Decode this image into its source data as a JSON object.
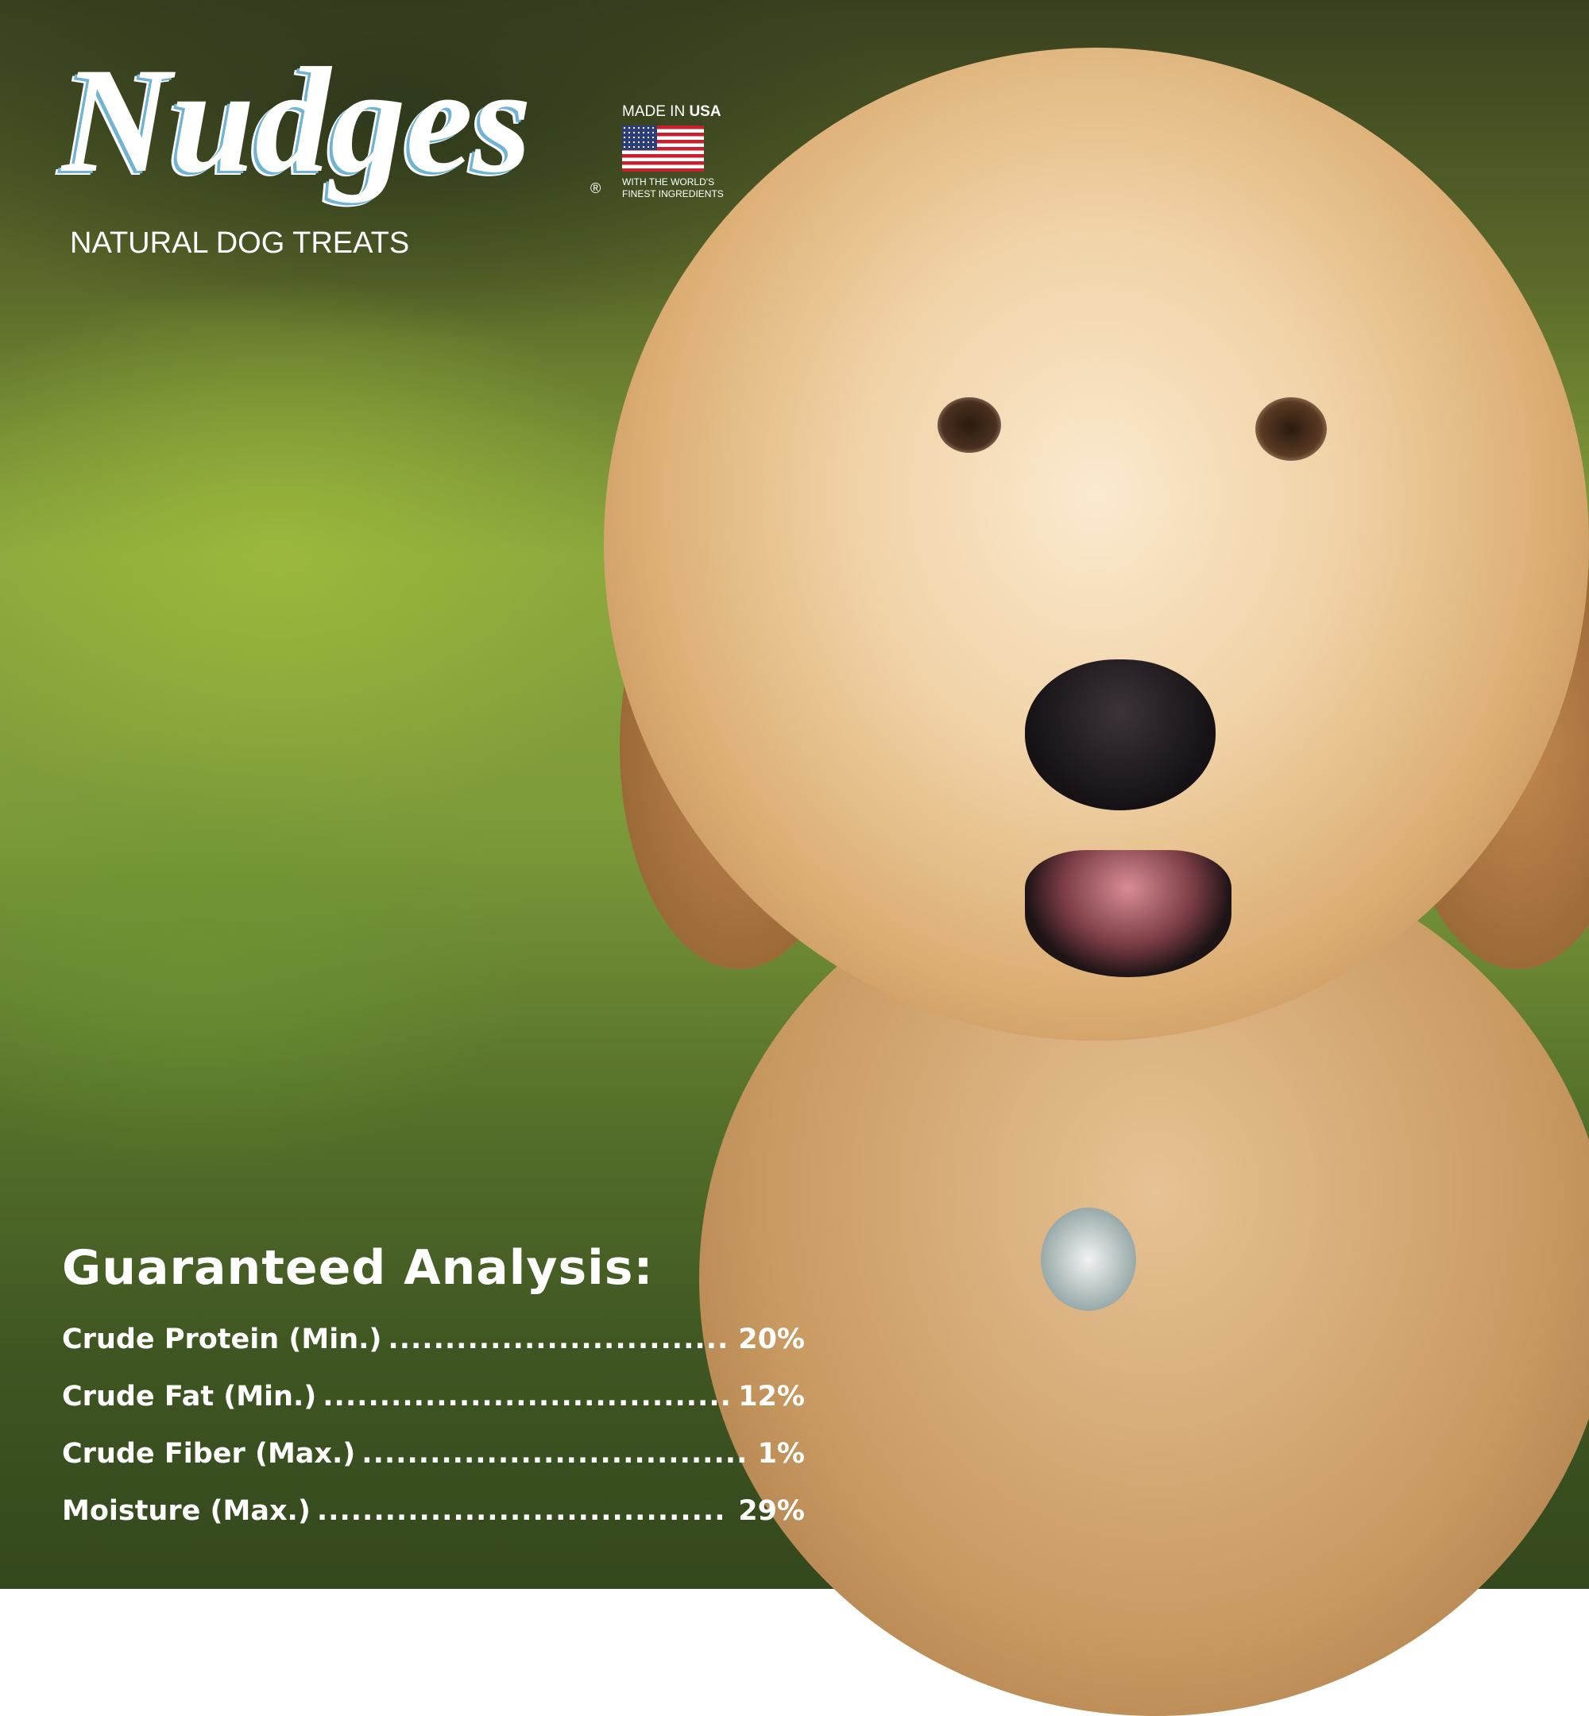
{
  "brand": {
    "name": "Nudges",
    "registered": "®",
    "tagline": "NATURAL DOG TREATS"
  },
  "badge": {
    "line1_prefix": "MADE IN ",
    "line1_bold": "USA",
    "line2": "WITH THE WORLD'S",
    "line3": "FINEST INGREDIENTS",
    "icon": "us-flag-icon"
  },
  "analysis": {
    "title": "Guaranteed Analysis:",
    "rows": [
      {
        "label": "Crude Protein (Min.)",
        "value": "20%"
      },
      {
        "label": "Crude Fat (Min.)",
        "value": "12%"
      },
      {
        "label": "Crude Fiber (Max.)",
        "value": "1%"
      },
      {
        "label": "Moisture (Max.)",
        "value": "29%"
      }
    ]
  },
  "colors": {
    "logo_outline": "#6fb4d2",
    "text": "#ffffff",
    "background": "#6f8a33"
  }
}
